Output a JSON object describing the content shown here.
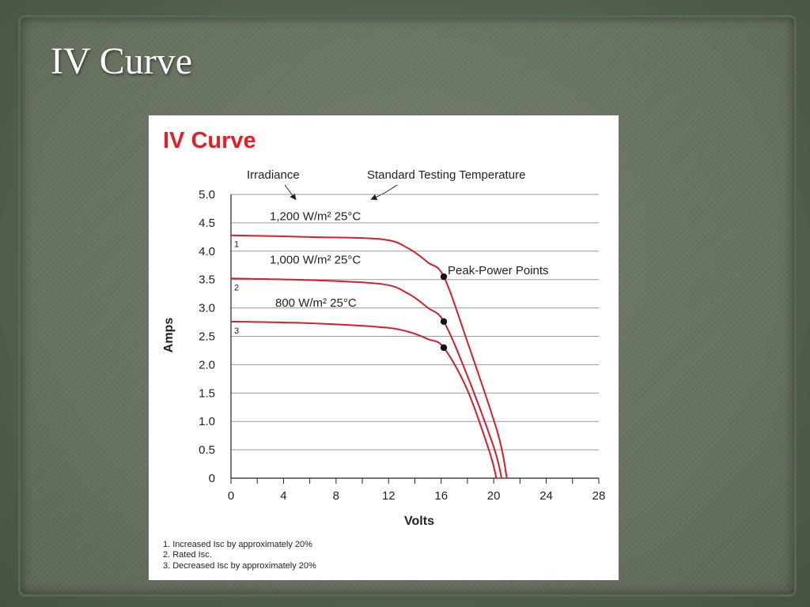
{
  "slide": {
    "title": "IV Curve"
  },
  "colors": {
    "curve": "#d0202e",
    "grid": "#999999",
    "title": "#e0202a"
  },
  "chart_data": {
    "type": "line",
    "title": "IV Curve",
    "xlabel": "Volts",
    "ylabel": "Amps",
    "xlim": [
      0,
      28
    ],
    "ylim": [
      0,
      5
    ],
    "xticks": [
      "0",
      "4",
      "8",
      "12",
      "16",
      "20",
      "24",
      "28"
    ],
    "yticks": [
      "0",
      "0.5",
      "1.0",
      "1.5",
      "2.0",
      "2.5",
      "3.0",
      "3.5",
      "4.0",
      "4.5",
      "5.0"
    ],
    "grid": "horizontal",
    "series": [
      {
        "name": "1,200 W/m² 25°C",
        "curve_label": "1",
        "x": [
          0,
          6,
          11.5,
          13.5,
          15,
          16.2,
          18,
          20.3,
          21.0
        ],
        "y": [
          4.28,
          4.25,
          4.21,
          4.05,
          3.8,
          3.55,
          2.4,
          0.8,
          0
        ]
      },
      {
        "name": "1,000 W/m² 25°C",
        "curve_label": "2",
        "x": [
          0,
          6,
          11.5,
          13.5,
          15,
          16.2,
          18,
          20.0,
          20.6
        ],
        "y": [
          3.52,
          3.49,
          3.42,
          3.25,
          3.0,
          2.76,
          1.8,
          0.55,
          0
        ]
      },
      {
        "name": "800 W/m² 25°C",
        "curve_label": "3",
        "x": [
          0,
          6,
          11.5,
          13.5,
          15,
          16.2,
          18,
          19.7,
          20.2
        ],
        "y": [
          2.76,
          2.73,
          2.66,
          2.58,
          2.45,
          2.3,
          1.55,
          0.45,
          0
        ]
      }
    ],
    "peak_power_points": [
      {
        "x": 16.2,
        "y": 3.55
      },
      {
        "x": 16.2,
        "y": 2.76
      },
      {
        "x": 16.2,
        "y": 2.3
      }
    ],
    "annotations": {
      "irradiance": "Irradiance",
      "temperature": "Standard Testing Temperature",
      "peak_power": "Peak-Power Points"
    },
    "footnotes": [
      "1. Increased Isc by approximately 20%",
      "2. Rated Isc.",
      "3. Decreased Isc by approximately 20%"
    ]
  }
}
